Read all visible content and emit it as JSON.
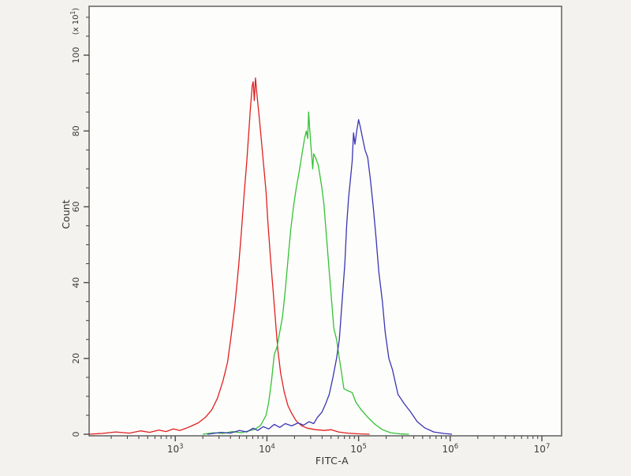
{
  "figure": {
    "background": "#f3f2ee",
    "plot_background": "#fdfdfb",
    "border_color": "#696969",
    "tick_color": "#4a4a4a"
  },
  "chart_data": {
    "type": "line",
    "subtype": "flow-cytometry-histogram-overlay",
    "title": "",
    "xlabel": "FITC-A",
    "ylabel": "Count",
    "y_multiplier": {
      "prefix": "(x 10",
      "exp": "1",
      "suffix": ")"
    },
    "x_scale": "log10",
    "x_range_log10": [
      2.06,
      7.215
    ],
    "ylim": [
      0,
      113
    ],
    "y_major_ticks": [
      0,
      20,
      40,
      60,
      80,
      100
    ],
    "y_tick_labels": [
      "0",
      "20",
      "40",
      "60",
      "80",
      "100"
    ],
    "y_minor_step": 5,
    "grid": false,
    "legend": null,
    "x_major_ticks_log10": [
      3,
      4,
      5,
      6,
      7
    ],
    "x_tick_labels": [
      {
        "base": "10",
        "exp": "3"
      },
      {
        "base": "10",
        "exp": "4"
      },
      {
        "base": "10",
        "exp": "5"
      },
      {
        "base": "10",
        "exp": "6"
      },
      {
        "base": "10",
        "exp": "7"
      }
    ],
    "series": [
      {
        "name": "red-histogram",
        "color": "#e02020",
        "peak_log10x": 3.88,
        "peak_count": 94,
        "points": [
          [
            2.06,
            0
          ],
          [
            2.2,
            0.2
          ],
          [
            2.35,
            0.6
          ],
          [
            2.5,
            0.3
          ],
          [
            2.62,
            0.9
          ],
          [
            2.72,
            0.5
          ],
          [
            2.82,
            1.1
          ],
          [
            2.9,
            0.7
          ],
          [
            2.98,
            1.4
          ],
          [
            3.05,
            1.0
          ],
          [
            3.12,
            1.6
          ],
          [
            3.18,
            2.2
          ],
          [
            3.25,
            3
          ],
          [
            3.33,
            4.5
          ],
          [
            3.4,
            6.5
          ],
          [
            3.46,
            9.5
          ],
          [
            3.52,
            14
          ],
          [
            3.57,
            19
          ],
          [
            3.61,
            26
          ],
          [
            3.65,
            34
          ],
          [
            3.69,
            44
          ],
          [
            3.72,
            53
          ],
          [
            3.75,
            63
          ],
          [
            3.78,
            72
          ],
          [
            3.8,
            79
          ],
          [
            3.82,
            86
          ],
          [
            3.84,
            92
          ],
          [
            3.85,
            93
          ],
          [
            3.862,
            88
          ],
          [
            3.875,
            94
          ],
          [
            3.89,
            90
          ],
          [
            3.91,
            85
          ],
          [
            3.93,
            80
          ],
          [
            3.96,
            72
          ],
          [
            3.99,
            64
          ],
          [
            4.01,
            56
          ],
          [
            4.04,
            46
          ],
          [
            4.07,
            37
          ],
          [
            4.1,
            28
          ],
          [
            4.12,
            22
          ],
          [
            4.15,
            16
          ],
          [
            4.19,
            11
          ],
          [
            4.23,
            7.5
          ],
          [
            4.27,
            5.5
          ],
          [
            4.32,
            3.5
          ],
          [
            4.38,
            2.2
          ],
          [
            4.44,
            1.6
          ],
          [
            4.53,
            1.2
          ],
          [
            4.63,
            1.0
          ],
          [
            4.7,
            1.2
          ],
          [
            4.78,
            0.6
          ],
          [
            4.88,
            0.3
          ],
          [
            5.0,
            0.1
          ],
          [
            5.12,
            0
          ]
        ]
      },
      {
        "name": "green-histogram",
        "color": "#35c135",
        "peak_log10x": 4.46,
        "peak_count": 85,
        "points": [
          [
            3.3,
            0
          ],
          [
            3.42,
            0.4
          ],
          [
            3.52,
            0.2
          ],
          [
            3.62,
            0.7
          ],
          [
            3.72,
            0.4
          ],
          [
            3.8,
            0.9
          ],
          [
            3.87,
            1.3
          ],
          [
            3.93,
            2.3
          ],
          [
            3.99,
            5
          ],
          [
            4.02,
            8.5
          ],
          [
            4.05,
            14
          ],
          [
            4.08,
            21
          ],
          [
            4.11,
            23
          ],
          [
            4.14,
            27
          ],
          [
            4.17,
            31
          ],
          [
            4.2,
            38
          ],
          [
            4.23,
            46
          ],
          [
            4.26,
            54
          ],
          [
            4.29,
            60
          ],
          [
            4.32,
            65
          ],
          [
            4.35,
            69
          ],
          [
            4.37,
            72
          ],
          [
            4.39,
            75
          ],
          [
            4.41,
            78
          ],
          [
            4.43,
            80
          ],
          [
            4.445,
            78
          ],
          [
            4.455,
            85
          ],
          [
            4.468,
            80
          ],
          [
            4.48,
            76
          ],
          [
            4.49,
            73
          ],
          [
            4.5,
            70
          ],
          [
            4.51,
            74
          ],
          [
            4.53,
            73
          ],
          [
            4.56,
            71
          ],
          [
            4.58,
            68
          ],
          [
            4.6,
            65
          ],
          [
            4.62,
            61
          ],
          [
            4.65,
            52
          ],
          [
            4.68,
            43
          ],
          [
            4.71,
            34
          ],
          [
            4.73,
            28
          ],
          [
            4.76,
            25
          ],
          [
            4.79,
            20
          ],
          [
            4.81,
            17
          ],
          [
            4.84,
            12
          ],
          [
            4.88,
            11.5
          ],
          [
            4.93,
            11
          ],
          [
            4.97,
            8.5
          ],
          [
            5.03,
            6.4
          ],
          [
            5.1,
            4.5
          ],
          [
            5.18,
            2.6
          ],
          [
            5.26,
            1.2
          ],
          [
            5.35,
            0.4
          ],
          [
            5.45,
            0.1
          ],
          [
            5.55,
            0
          ]
        ]
      },
      {
        "name": "blue-histogram",
        "color": "#3a35b5",
        "peak_log10x": 5.0,
        "peak_count": 83,
        "points": [
          [
            3.35,
            0
          ],
          [
            3.5,
            0.5
          ],
          [
            3.6,
            0.3
          ],
          [
            3.7,
            1.0
          ],
          [
            3.78,
            0.6
          ],
          [
            3.85,
            1.6
          ],
          [
            3.9,
            1.0
          ],
          [
            3.96,
            2.0
          ],
          [
            4.02,
            1.4
          ],
          [
            4.08,
            2.6
          ],
          [
            4.14,
            1.8
          ],
          [
            4.2,
            2.8
          ],
          [
            4.27,
            2.2
          ],
          [
            4.34,
            3.0
          ],
          [
            4.4,
            2.4
          ],
          [
            4.46,
            3.3
          ],
          [
            4.51,
            2.8
          ],
          [
            4.55,
            4.4
          ],
          [
            4.6,
            5.8
          ],
          [
            4.64,
            8
          ],
          [
            4.68,
            10.5
          ],
          [
            4.72,
            15
          ],
          [
            4.76,
            20
          ],
          [
            4.79,
            25
          ],
          [
            4.82,
            35
          ],
          [
            4.85,
            45
          ],
          [
            4.87,
            55
          ],
          [
            4.89,
            62
          ],
          [
            4.91,
            67
          ],
          [
            4.93,
            72
          ],
          [
            4.945,
            79.5
          ],
          [
            4.96,
            76.5
          ],
          [
            4.98,
            80
          ],
          [
            5.0,
            83
          ],
          [
            5.02,
            81
          ],
          [
            5.04,
            78.5
          ],
          [
            5.07,
            75
          ],
          [
            5.1,
            73
          ],
          [
            5.13,
            67
          ],
          [
            5.16,
            60
          ],
          [
            5.19,
            52
          ],
          [
            5.22,
            43
          ],
          [
            5.26,
            35
          ],
          [
            5.29,
            27
          ],
          [
            5.33,
            20
          ],
          [
            5.37,
            17
          ],
          [
            5.43,
            10.5
          ],
          [
            5.5,
            8
          ],
          [
            5.57,
            5.8
          ],
          [
            5.64,
            3.3
          ],
          [
            5.72,
            1.7
          ],
          [
            5.82,
            0.6
          ],
          [
            5.93,
            0.2
          ],
          [
            6.02,
            0
          ]
        ]
      }
    ]
  }
}
